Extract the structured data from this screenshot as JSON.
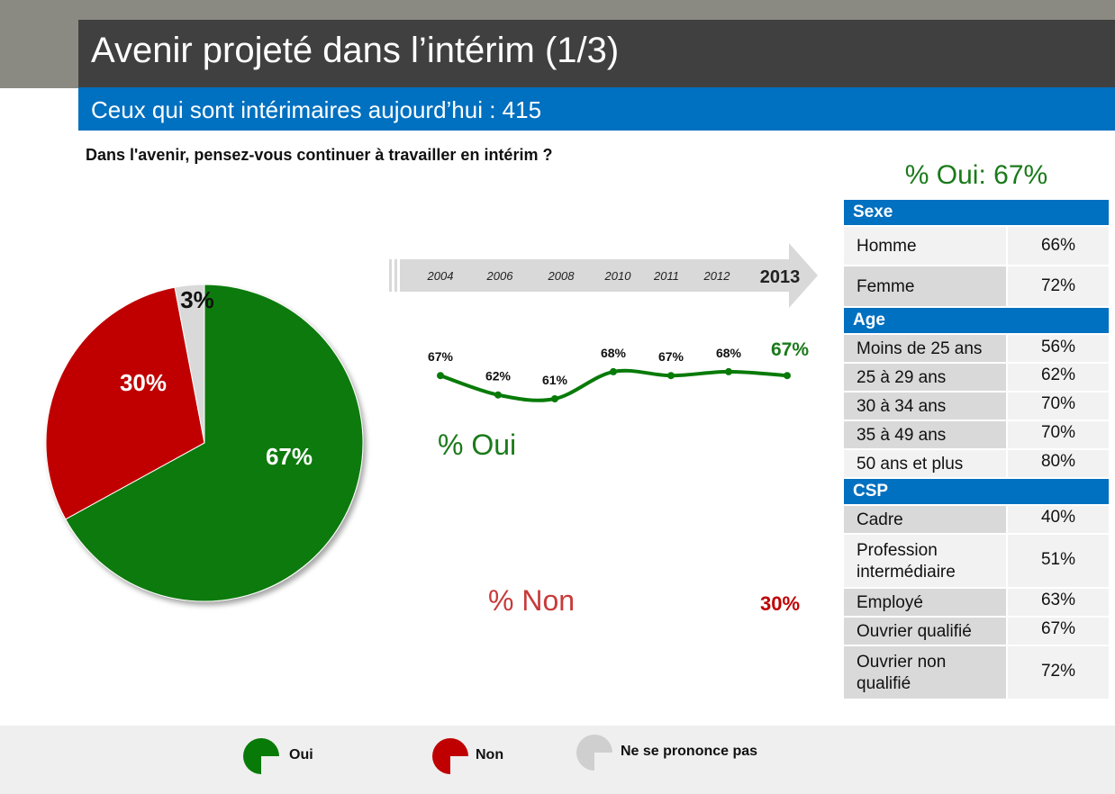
{
  "header": {
    "title": "Avenir projeté dans l’intérim (1/3)",
    "subtitle": "Ceux qui sont intérimaires aujourd’hui : 415"
  },
  "question": "Dans l'avenir, pensez-vous continuer à travailler en intérim ?",
  "colors": {
    "oui": "#087a08",
    "non": "#c00000",
    "nsp": "#d9d9d9",
    "blue": "#0070c0"
  },
  "chart_data": [
    {
      "type": "pie",
      "slices": [
        {
          "name": "Oui",
          "value": 67,
          "label": "67%",
          "color": "#087a08"
        },
        {
          "name": "Non",
          "value": 30,
          "label": "30%",
          "color": "#c00000"
        },
        {
          "name": "Ne se prononce pas",
          "value": 3,
          "label": "3%",
          "color": "#d9d9d9"
        }
      ]
    },
    {
      "type": "line",
      "x": [
        "2004",
        "2006",
        "2008",
        "2010",
        "2011",
        "2012",
        "2013"
      ],
      "series": [
        {
          "name": "% Oui",
          "values": [
            67,
            62,
            61,
            68,
            67,
            68,
            67
          ],
          "labels": [
            "67%",
            "62%",
            "61%",
            "68%",
            "67%",
            "68%",
            "67%"
          ],
          "color": "#087a08"
        },
        {
          "name": "% Non",
          "values": [
            null,
            null,
            null,
            null,
            null,
            null,
            30
          ],
          "label_2013": "30%",
          "color": "#c00000"
        }
      ],
      "highlight_year": "2013"
    }
  ],
  "breakdown": {
    "title": "% Oui: 67%",
    "sections": [
      {
        "name": "Sexe",
        "rows": [
          {
            "label": "Homme",
            "value": "66%"
          },
          {
            "label": "Femme",
            "value": "72%"
          }
        ]
      },
      {
        "name": "Age",
        "rows": [
          {
            "label": "Moins de 25 ans",
            "value": "56%"
          },
          {
            "label": "25 à 29 ans",
            "value": "62%"
          },
          {
            "label": "30 à 34 ans",
            "value": "70%"
          },
          {
            "label": "35 à 49 ans",
            "value": "70%"
          },
          {
            "label": "50 ans et plus",
            "value": "80%"
          }
        ]
      },
      {
        "name": "CSP",
        "rows": [
          {
            "label": "Cadre",
            "value": "40%"
          },
          {
            "label": "Profession",
            "label2": "intermédiaire",
            "value": "51%"
          },
          {
            "label": "Employé",
            "value": "63%"
          },
          {
            "label": "Ouvrier qualifié",
            "value": "67%"
          },
          {
            "label": "Ouvrier non",
            "label2": "qualifié",
            "value": "72%"
          }
        ]
      }
    ]
  },
  "legend": [
    {
      "name": "Oui",
      "color": "#087a08"
    },
    {
      "name": "Non",
      "color": "#c00000"
    },
    {
      "name": "Ne se prononce pas",
      "color": "#cfcfcf"
    }
  ]
}
